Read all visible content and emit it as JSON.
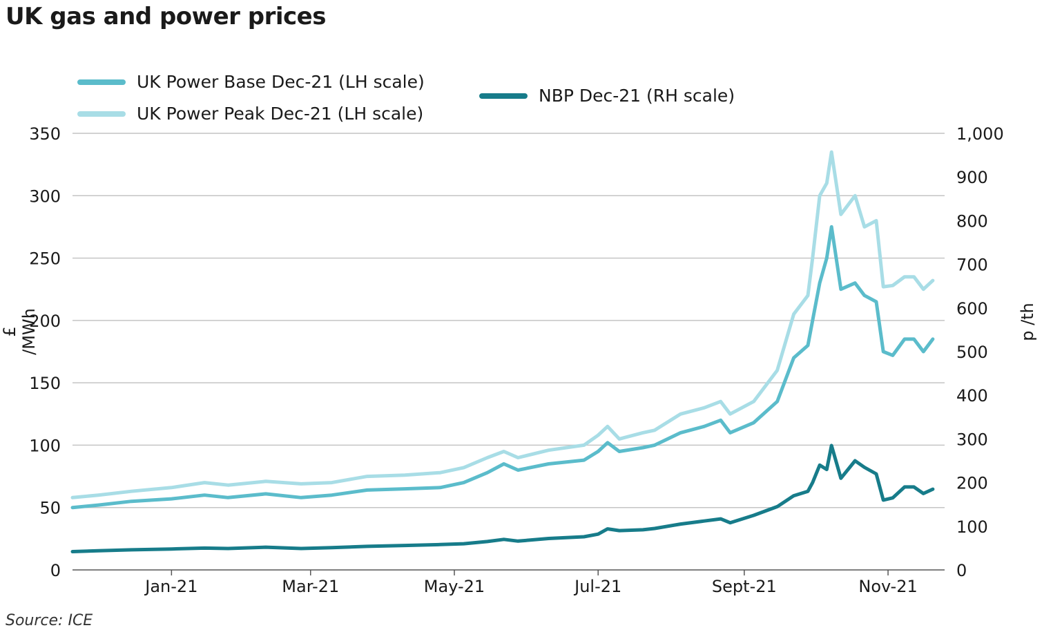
{
  "title": "UK gas and power prices",
  "source": "Source: ICE",
  "legend": [
    {
      "label": "UK Power Base Dec-21 (LH scale)",
      "color": "#5bbccb"
    },
    {
      "label": "UK Power Peak Dec-21 (LH scale)",
      "color": "#a8dde6"
    },
    {
      "label": "NBP Dec-21 (RH scale)",
      "color": "#177c8a"
    }
  ],
  "chart_data": {
    "type": "line",
    "x_ticks": [
      "Jan-21",
      "Mar-21",
      "May-21",
      "Jul-21",
      "Sept-21",
      "Nov-21"
    ],
    "y_left": {
      "label": "£ /MWh",
      "min": 0,
      "max": 350,
      "ticks": [
        "0",
        "50",
        "100",
        "150",
        "200",
        "250",
        "300",
        "350"
      ]
    },
    "y_right": {
      "label": "p /th",
      "min": 0,
      "max": 1000,
      "ticks": [
        "0",
        "100",
        "200",
        "300",
        "400",
        "500",
        "600",
        "700",
        "800",
        "900",
        "1,000"
      ]
    },
    "grid": true,
    "series": [
      {
        "name": "UK Power Base Dec-21 (LH scale)",
        "axis": "left",
        "color": "#5bbccb",
        "x": [
          "2020-11-20",
          "2020-12-01",
          "2020-12-15",
          "2021-01-01",
          "2021-01-15",
          "2021-01-25",
          "2021-02-10",
          "2021-02-25",
          "2021-03-10",
          "2021-03-25",
          "2021-04-10",
          "2021-04-25",
          "2021-05-05",
          "2021-05-15",
          "2021-05-22",
          "2021-05-28",
          "2021-06-10",
          "2021-06-25",
          "2021-07-01",
          "2021-07-05",
          "2021-07-10",
          "2021-07-20",
          "2021-07-25",
          "2021-08-05",
          "2021-08-15",
          "2021-08-22",
          "2021-08-26",
          "2021-09-05",
          "2021-09-15",
          "2021-09-22",
          "2021-09-28",
          "2021-09-30",
          "2021-10-03",
          "2021-10-06",
          "2021-10-08",
          "2021-10-12",
          "2021-10-18",
          "2021-10-22",
          "2021-10-27",
          "2021-10-30",
          "2021-11-03",
          "2021-11-08",
          "2021-11-12",
          "2021-11-16",
          "2021-11-20"
        ],
        "values": [
          50,
          52,
          55,
          57,
          60,
          58,
          61,
          58,
          60,
          64,
          65,
          66,
          70,
          78,
          85,
          80,
          85,
          88,
          95,
          102,
          95,
          98,
          100,
          110,
          115,
          120,
          110,
          118,
          135,
          170,
          180,
          200,
          230,
          250,
          275,
          225,
          230,
          220,
          215,
          175,
          172,
          185,
          185,
          175,
          185
        ]
      },
      {
        "name": "UK Power Peak Dec-21 (LH scale)",
        "axis": "left",
        "color": "#a8dde6",
        "x": [
          "2020-11-20",
          "2020-12-01",
          "2020-12-15",
          "2021-01-01",
          "2021-01-15",
          "2021-01-25",
          "2021-02-10",
          "2021-02-25",
          "2021-03-10",
          "2021-03-25",
          "2021-04-10",
          "2021-04-25",
          "2021-05-05",
          "2021-05-15",
          "2021-05-22",
          "2021-05-28",
          "2021-06-10",
          "2021-06-25",
          "2021-07-01",
          "2021-07-05",
          "2021-07-10",
          "2021-07-20",
          "2021-07-25",
          "2021-08-05",
          "2021-08-15",
          "2021-08-22",
          "2021-08-26",
          "2021-09-05",
          "2021-09-15",
          "2021-09-22",
          "2021-09-28",
          "2021-09-30",
          "2021-10-03",
          "2021-10-06",
          "2021-10-08",
          "2021-10-12",
          "2021-10-18",
          "2021-10-22",
          "2021-10-27",
          "2021-10-30",
          "2021-11-03",
          "2021-11-08",
          "2021-11-12",
          "2021-11-16",
          "2021-11-20"
        ],
        "values": [
          58,
          60,
          63,
          66,
          70,
          68,
          71,
          69,
          70,
          75,
          76,
          78,
          82,
          90,
          95,
          90,
          96,
          100,
          108,
          115,
          105,
          110,
          112,
          125,
          130,
          135,
          125,
          135,
          160,
          205,
          220,
          250,
          300,
          310,
          335,
          285,
          300,
          275,
          280,
          227,
          228,
          235,
          235,
          225,
          232
        ]
      },
      {
        "name": "NBP Dec-21 (RH scale)",
        "axis": "right",
        "color": "#177c8a",
        "x": [
          "2020-11-20",
          "2020-12-01",
          "2020-12-15",
          "2021-01-01",
          "2021-01-15",
          "2021-01-25",
          "2021-02-10",
          "2021-02-25",
          "2021-03-10",
          "2021-03-25",
          "2021-04-10",
          "2021-04-25",
          "2021-05-05",
          "2021-05-15",
          "2021-05-22",
          "2021-05-28",
          "2021-06-10",
          "2021-06-25",
          "2021-07-01",
          "2021-07-05",
          "2021-07-10",
          "2021-07-20",
          "2021-07-25",
          "2021-08-05",
          "2021-08-15",
          "2021-08-22",
          "2021-08-26",
          "2021-09-05",
          "2021-09-15",
          "2021-09-22",
          "2021-09-28",
          "2021-09-30",
          "2021-10-03",
          "2021-10-06",
          "2021-10-08",
          "2021-10-12",
          "2021-10-18",
          "2021-10-22",
          "2021-10-27",
          "2021-10-30",
          "2021-11-03",
          "2021-11-08",
          "2021-11-12",
          "2021-11-16",
          "2021-11-20"
        ],
        "values": [
          42,
          44,
          46,
          48,
          50,
          49,
          52,
          49,
          51,
          54,
          56,
          58,
          60,
          65,
          70,
          66,
          72,
          76,
          82,
          94,
          90,
          92,
          95,
          105,
          112,
          117,
          108,
          125,
          145,
          170,
          180,
          200,
          240,
          230,
          285,
          210,
          250,
          235,
          220,
          160,
          165,
          190,
          190,
          175,
          185
        ]
      }
    ]
  }
}
